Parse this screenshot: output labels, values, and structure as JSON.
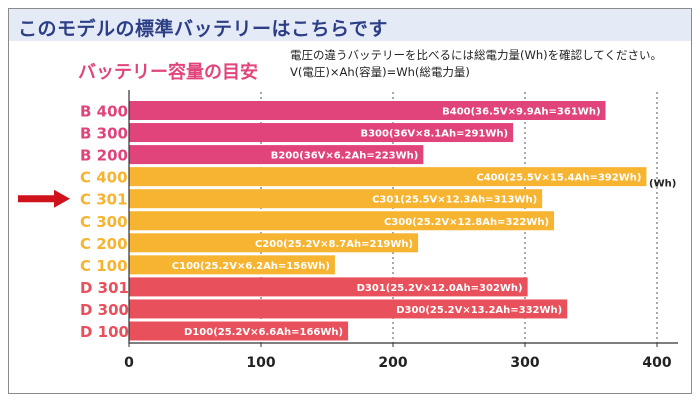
{
  "header": {
    "title": "このモデルの標準バッテリーはこちらです",
    "subtitle": "バッテリー容量の目安",
    "note_line1": "電圧の違うバッテリーを比べるには総電力量(Wh)を確認してください。",
    "note_line2": "V(電圧)×Ah(容量)=Wh(総電力量)"
  },
  "colors": {
    "B": "#e0447b",
    "C": "#f6b431",
    "D": "#e8505b",
    "arrow": "#d0121b"
  },
  "chart_data": {
    "type": "bar",
    "orientation": "horizontal",
    "categories": [
      "B 400",
      "B 300",
      "B 200",
      "C 400",
      "C 301",
      "C 300",
      "C 200",
      "C 100",
      "D 301",
      "D 300",
      "D 100"
    ],
    "groups": [
      "B",
      "B",
      "B",
      "C",
      "C",
      "C",
      "C",
      "C",
      "D",
      "D",
      "D"
    ],
    "values": [
      361,
      291,
      223,
      392,
      313,
      322,
      219,
      156,
      302,
      332,
      166
    ],
    "data_labels": [
      "B400(36.5V×9.9Ah=361Wh)",
      "B300(36V×8.1Ah=291Wh)",
      "B200(36V×6.2Ah=223Wh)",
      "C400(25.5V×15.4Ah=392Wh)",
      "C301(25.5V×12.3Ah=313Wh)",
      "C300(25.2V×12.8Ah=322Wh)",
      "C200(25.2V×8.7Ah=219Wh)",
      "C100(25.2V×6.2Ah=156Wh)",
      "D301(25.2V×12.0Ah=302Wh)",
      "D300(25.2V×13.2Ah=332Wh)",
      "D100(25.2V×6.6Ah=166Wh)"
    ],
    "highlighted_category": "C 301",
    "xlim": [
      0,
      400
    ],
    "xticks": [
      0,
      100,
      200,
      300,
      400
    ],
    "x_unit_label": "(Wh)",
    "grid": "vertical dotted"
  }
}
